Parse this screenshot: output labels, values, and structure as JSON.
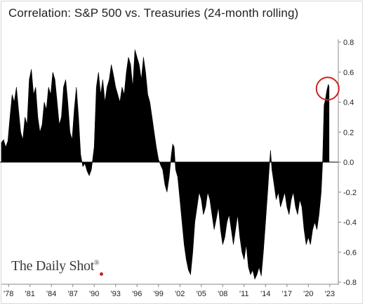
{
  "chart_data": {
    "type": "area",
    "title": "Correlation: S&P 500 vs. Treasuries (24-month rolling)",
    "xlabel": "",
    "ylabel": "",
    "x_tick_labels": [
      "'78",
      "'81",
      "'84",
      "'87",
      "'90",
      "'93",
      "'96",
      "'99",
      "'02",
      "'05",
      "'08",
      "'11",
      "'14",
      "'17",
      "'20",
      "'23"
    ],
    "x_tick_years": [
      1978,
      1981,
      1984,
      1987,
      1990,
      1993,
      1996,
      1999,
      2002,
      2005,
      2008,
      2011,
      2014,
      2017,
      2020,
      2023
    ],
    "y_ticks": [
      -0.8,
      -0.6,
      -0.4,
      -0.2,
      0.0,
      0.2,
      0.4,
      0.6,
      0.8
    ],
    "y_tick_labels": [
      "-0.8",
      "-0.6",
      "-0.4",
      "-0.2",
      "0.0",
      "0.2",
      "0.4",
      "0.6",
      "0.8"
    ],
    "xlim": [
      1976.8,
      2024.2
    ],
    "ylim": [
      -0.8,
      0.8
    ],
    "y_axis_position": "right",
    "grid": false,
    "series": [
      {
        "color": "#000000",
        "points": [
          [
            1977.0,
            0.13
          ],
          [
            1977.3,
            0.15
          ],
          [
            1977.6,
            0.1
          ],
          [
            1977.9,
            0.14
          ],
          [
            1978.2,
            0.3
          ],
          [
            1978.5,
            0.45
          ],
          [
            1978.8,
            0.4
          ],
          [
            1979.1,
            0.5
          ],
          [
            1979.4,
            0.35
          ],
          [
            1979.7,
            0.2
          ],
          [
            1980.0,
            0.15
          ],
          [
            1980.3,
            0.3
          ],
          [
            1980.6,
            0.25
          ],
          [
            1980.9,
            0.55
          ],
          [
            1981.2,
            0.62
          ],
          [
            1981.5,
            0.45
          ],
          [
            1981.8,
            0.5
          ],
          [
            1982.1,
            0.3
          ],
          [
            1982.4,
            0.2
          ],
          [
            1982.7,
            0.25
          ],
          [
            1983.0,
            0.4
          ],
          [
            1983.3,
            0.35
          ],
          [
            1983.6,
            0.5
          ],
          [
            1983.9,
            0.45
          ],
          [
            1984.2,
            0.6
          ],
          [
            1984.5,
            0.55
          ],
          [
            1984.8,
            0.4
          ],
          [
            1985.1,
            0.25
          ],
          [
            1985.4,
            0.3
          ],
          [
            1985.7,
            0.5
          ],
          [
            1986.0,
            0.55
          ],
          [
            1986.3,
            0.4
          ],
          [
            1986.6,
            0.2
          ],
          [
            1986.9,
            0.15
          ],
          [
            1987.2,
            0.35
          ],
          [
            1987.5,
            0.5
          ],
          [
            1987.8,
            0.3
          ],
          [
            1988.1,
            0.05
          ],
          [
            1988.4,
            -0.03
          ],
          [
            1988.7,
            -0.01
          ],
          [
            1989.0,
            -0.06
          ],
          [
            1989.3,
            -0.09
          ],
          [
            1989.6,
            -0.05
          ],
          [
            1990.0,
            0.1
          ],
          [
            1990.3,
            0.5
          ],
          [
            1990.6,
            0.6
          ],
          [
            1990.9,
            0.45
          ],
          [
            1991.2,
            0.55
          ],
          [
            1991.5,
            0.4
          ],
          [
            1991.8,
            0.5
          ],
          [
            1992.1,
            0.55
          ],
          [
            1992.4,
            0.65
          ],
          [
            1992.7,
            0.58
          ],
          [
            1993.0,
            0.5
          ],
          [
            1993.3,
            0.45
          ],
          [
            1993.6,
            0.4
          ],
          [
            1993.9,
            0.5
          ],
          [
            1994.2,
            0.45
          ],
          [
            1994.5,
            0.6
          ],
          [
            1994.8,
            0.7
          ],
          [
            1995.1,
            0.65
          ],
          [
            1995.4,
            0.5
          ],
          [
            1995.7,
            0.75
          ],
          [
            1996.0,
            0.7
          ],
          [
            1996.3,
            0.65
          ],
          [
            1996.6,
            0.55
          ],
          [
            1996.9,
            0.7
          ],
          [
            1997.2,
            0.6
          ],
          [
            1997.5,
            0.45
          ],
          [
            1997.8,
            0.4
          ],
          [
            1998.1,
            0.3
          ],
          [
            1998.4,
            0.2
          ],
          [
            1998.7,
            0.1
          ],
          [
            1999.0,
            0.02
          ],
          [
            1999.3,
            -0.02
          ],
          [
            1999.6,
            -0.05
          ],
          [
            1999.9,
            -0.15
          ],
          [
            2000.2,
            -0.2
          ],
          [
            2000.5,
            -0.1
          ],
          [
            2000.8,
            0.05
          ],
          [
            2001.0,
            0.12
          ],
          [
            2001.2,
            0.1
          ],
          [
            2001.4,
            -0.05
          ],
          [
            2001.7,
            -0.1
          ],
          [
            2002.0,
            -0.25
          ],
          [
            2002.3,
            -0.4
          ],
          [
            2002.6,
            -0.55
          ],
          [
            2002.9,
            -0.65
          ],
          [
            2003.2,
            -0.72
          ],
          [
            2003.5,
            -0.75
          ],
          [
            2003.8,
            -0.6
          ],
          [
            2004.1,
            -0.4
          ],
          [
            2004.4,
            -0.3
          ],
          [
            2004.7,
            -0.2
          ],
          [
            2005.0,
            -0.25
          ],
          [
            2005.3,
            -0.35
          ],
          [
            2005.6,
            -0.3
          ],
          [
            2005.9,
            -0.2
          ],
          [
            2006.2,
            -0.25
          ],
          [
            2006.5,
            -0.35
          ],
          [
            2006.8,
            -0.45
          ],
          [
            2007.1,
            -0.38
          ],
          [
            2007.4,
            -0.3
          ],
          [
            2007.7,
            -0.45
          ],
          [
            2008.0,
            -0.55
          ],
          [
            2008.3,
            -0.5
          ],
          [
            2008.6,
            -0.4
          ],
          [
            2008.9,
            -0.35
          ],
          [
            2009.2,
            -0.45
          ],
          [
            2009.5,
            -0.55
          ],
          [
            2009.8,
            -0.45
          ],
          [
            2010.1,
            -0.35
          ],
          [
            2010.4,
            -0.5
          ],
          [
            2010.7,
            -0.6
          ],
          [
            2011.0,
            -0.65
          ],
          [
            2011.3,
            -0.55
          ],
          [
            2011.6,
            -0.7
          ],
          [
            2011.9,
            -0.75
          ],
          [
            2012.2,
            -0.72
          ],
          [
            2012.5,
            -0.78
          ],
          [
            2012.8,
            -0.75
          ],
          [
            2013.1,
            -0.7
          ],
          [
            2013.4,
            -0.76
          ],
          [
            2013.7,
            -0.6
          ],
          [
            2014.0,
            -0.4
          ],
          [
            2014.3,
            -0.2
          ],
          [
            2014.5,
            -0.05
          ],
          [
            2014.7,
            0.08
          ],
          [
            2014.9,
            -0.05
          ],
          [
            2015.2,
            -0.15
          ],
          [
            2015.5,
            -0.25
          ],
          [
            2015.8,
            -0.2
          ],
          [
            2016.1,
            -0.3
          ],
          [
            2016.4,
            -0.25
          ],
          [
            2016.7,
            -0.2
          ],
          [
            2017.0,
            -0.3
          ],
          [
            2017.3,
            -0.35
          ],
          [
            2017.6,
            -0.25
          ],
          [
            2017.9,
            -0.2
          ],
          [
            2018.2,
            -0.3
          ],
          [
            2018.5,
            -0.35
          ],
          [
            2018.8,
            -0.25
          ],
          [
            2019.1,
            -0.3
          ],
          [
            2019.4,
            -0.45
          ],
          [
            2019.7,
            -0.55
          ],
          [
            2020.0,
            -0.5
          ],
          [
            2020.3,
            -0.55
          ],
          [
            2020.6,
            -0.45
          ],
          [
            2020.9,
            -0.4
          ],
          [
            2021.2,
            -0.45
          ],
          [
            2021.5,
            -0.35
          ],
          [
            2021.8,
            -0.2
          ],
          [
            2022.0,
            0.0
          ],
          [
            2022.2,
            0.38
          ],
          [
            2022.4,
            0.42
          ],
          [
            2022.6,
            0.48
          ],
          [
            2022.8,
            0.52
          ],
          [
            2022.9,
            0.5
          ]
        ]
      }
    ],
    "annotation": {
      "type": "circle",
      "x": 2022.7,
      "y": 0.49,
      "color": "#cc2222"
    }
  },
  "branding": {
    "logo_text": "The Daily Shot",
    "registered_mark": "®"
  }
}
